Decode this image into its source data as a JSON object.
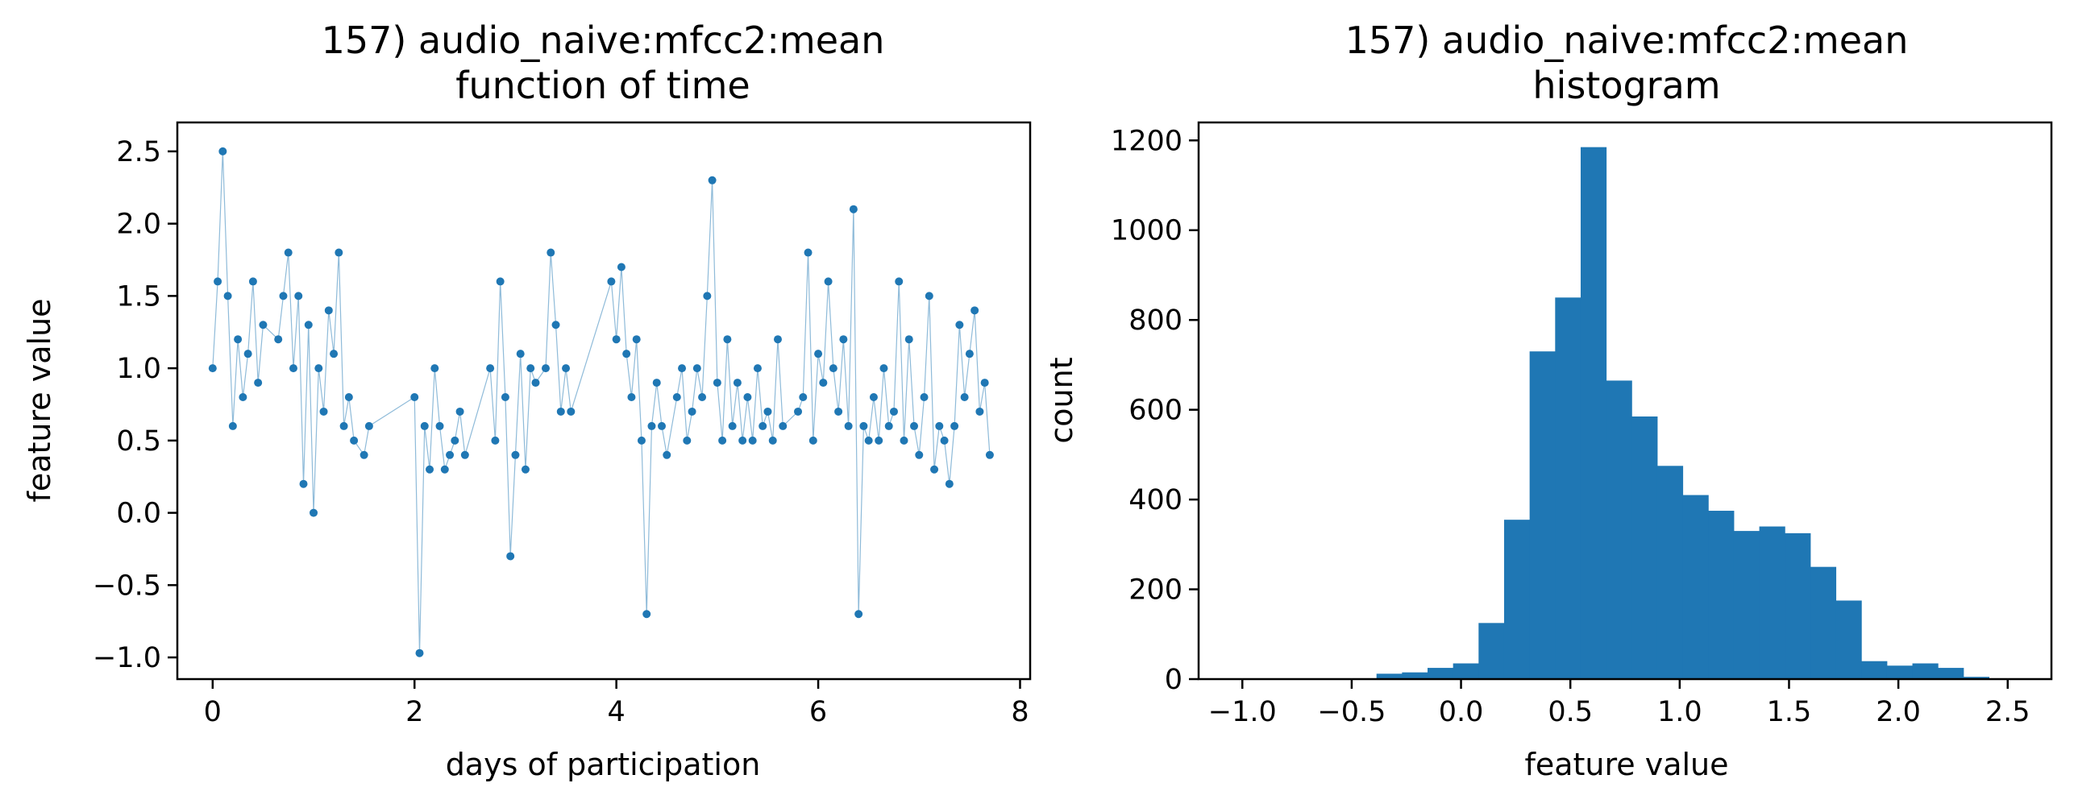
{
  "colors": {
    "series": "#1f77b4",
    "axes": "#000000",
    "background": "#ffffff"
  },
  "chart_data": [
    {
      "type": "scatter",
      "title_line1": "157) audio_naive:mfcc2:mean",
      "title_line2": "function of time",
      "xlabel": "days of participation",
      "ylabel": "feature value",
      "xlim": [
        -0.35,
        8.1
      ],
      "ylim": [
        -1.15,
        2.7
      ],
      "xticks": [
        0,
        2,
        4,
        6,
        8
      ],
      "yticks": [
        -1.0,
        -0.5,
        0.0,
        0.5,
        1.0,
        1.5,
        2.0,
        2.5
      ],
      "xtick_labels": [
        "0",
        "2",
        "4",
        "6",
        "8"
      ],
      "ytick_labels": [
        "−1.0",
        "−0.5",
        "0.0",
        "0.5",
        "1.0",
        "1.5",
        "2.0",
        "2.5"
      ],
      "grid": false,
      "connected": true,
      "series_x": [
        0.0,
        0.05,
        0.1,
        0.15,
        0.2,
        0.25,
        0.3,
        0.35,
        0.4,
        0.45,
        0.5,
        0.65,
        0.7,
        0.75,
        0.8,
        0.85,
        0.9,
        0.95,
        1.0,
        1.05,
        1.1,
        1.15,
        1.2,
        1.25,
        1.3,
        1.35,
        1.4,
        1.5,
        1.55,
        2.0,
        2.05,
        2.1,
        2.15,
        2.2,
        2.25,
        2.3,
        2.35,
        2.4,
        2.45,
        2.5,
        2.75,
        2.8,
        2.85,
        2.9,
        2.95,
        3.0,
        3.05,
        3.1,
        3.15,
        3.2,
        3.3,
        3.35,
        3.4,
        3.45,
        3.5,
        3.55,
        3.95,
        4.0,
        4.05,
        4.1,
        4.15,
        4.2,
        4.25,
        4.3,
        4.35,
        4.4,
        4.45,
        4.5,
        4.6,
        4.65,
        4.7,
        4.75,
        4.8,
        4.85,
        4.9,
        4.95,
        5.0,
        5.05,
        5.1,
        5.15,
        5.2,
        5.25,
        5.3,
        5.35,
        5.4,
        5.45,
        5.5,
        5.55,
        5.6,
        5.65,
        5.8,
        5.85,
        5.9,
        5.95,
        6.0,
        6.05,
        6.1,
        6.15,
        6.2,
        6.25,
        6.3,
        6.35,
        6.4,
        6.45,
        6.5,
        6.55,
        6.6,
        6.65,
        6.7,
        6.75,
        6.8,
        6.85,
        6.9,
        6.95,
        7.0,
        7.05,
        7.1,
        7.15,
        7.2,
        7.25,
        7.3,
        7.35,
        7.4,
        7.45,
        7.5,
        7.55,
        7.6,
        7.65,
        7.7
      ],
      "series_y": [
        1.0,
        1.6,
        2.5,
        1.5,
        0.6,
        1.2,
        0.8,
        1.1,
        1.6,
        0.9,
        1.3,
        1.2,
        1.5,
        1.8,
        1.0,
        1.5,
        0.2,
        1.3,
        0.0,
        1.0,
        0.7,
        1.4,
        1.1,
        1.8,
        0.6,
        0.8,
        0.5,
        0.4,
        0.6,
        0.8,
        -0.97,
        0.6,
        0.3,
        1.0,
        0.6,
        0.3,
        0.4,
        0.5,
        0.7,
        0.4,
        1.0,
        0.5,
        1.6,
        0.8,
        -0.3,
        0.4,
        1.1,
        0.3,
        1.0,
        0.9,
        1.0,
        1.8,
        1.3,
        0.7,
        1.0,
        0.7,
        1.6,
        1.2,
        1.7,
        1.1,
        0.8,
        1.2,
        0.5,
        -0.7,
        0.6,
        0.9,
        0.6,
        0.4,
        0.8,
        1.0,
        0.5,
        0.7,
        1.0,
        0.8,
        1.5,
        2.3,
        0.9,
        0.5,
        1.2,
        0.6,
        0.9,
        0.5,
        0.8,
        0.5,
        1.0,
        0.6,
        0.7,
        0.5,
        1.2,
        0.6,
        0.7,
        0.8,
        1.8,
        0.5,
        1.1,
        0.9,
        1.6,
        1.0,
        0.7,
        1.2,
        0.6,
        2.1,
        -0.7,
        0.6,
        0.5,
        0.8,
        0.5,
        1.0,
        0.6,
        0.7,
        1.6,
        0.5,
        1.2,
        0.6,
        0.4,
        0.8,
        1.5,
        0.3,
        0.6,
        0.5,
        0.2,
        0.6,
        1.3,
        0.8,
        1.1,
        1.4,
        0.7,
        0.9,
        0.4
      ]
    },
    {
      "type": "bar",
      "title_line1": "157) audio_naive:mfcc2:mean",
      "title_line2": "histogram",
      "xlabel": "feature value",
      "ylabel": "count",
      "xlim": [
        -1.2,
        2.7
      ],
      "ylim": [
        0,
        1240
      ],
      "xticks": [
        -1.0,
        -0.5,
        0.0,
        0.5,
        1.0,
        1.5,
        2.0,
        2.5
      ],
      "xtick_labels": [
        "−1.0",
        "−0.5",
        "0.0",
        "0.5",
        "1.0",
        "1.5",
        "2.0",
        "2.5"
      ],
      "yticks": [
        0,
        200,
        400,
        600,
        800,
        1000,
        1200
      ],
      "ytick_labels": [
        "0",
        "200",
        "400",
        "600",
        "800",
        "1000",
        "1200"
      ],
      "grid": false,
      "bin_start": -0.97,
      "bin_width": 0.1167,
      "values": [
        1,
        0,
        0,
        0,
        0,
        12,
        15,
        25,
        35,
        125,
        355,
        730,
        850,
        1185,
        665,
        585,
        475,
        410,
        375,
        330,
        340,
        325,
        250,
        175,
        40,
        30,
        35,
        25,
        5
      ]
    }
  ]
}
